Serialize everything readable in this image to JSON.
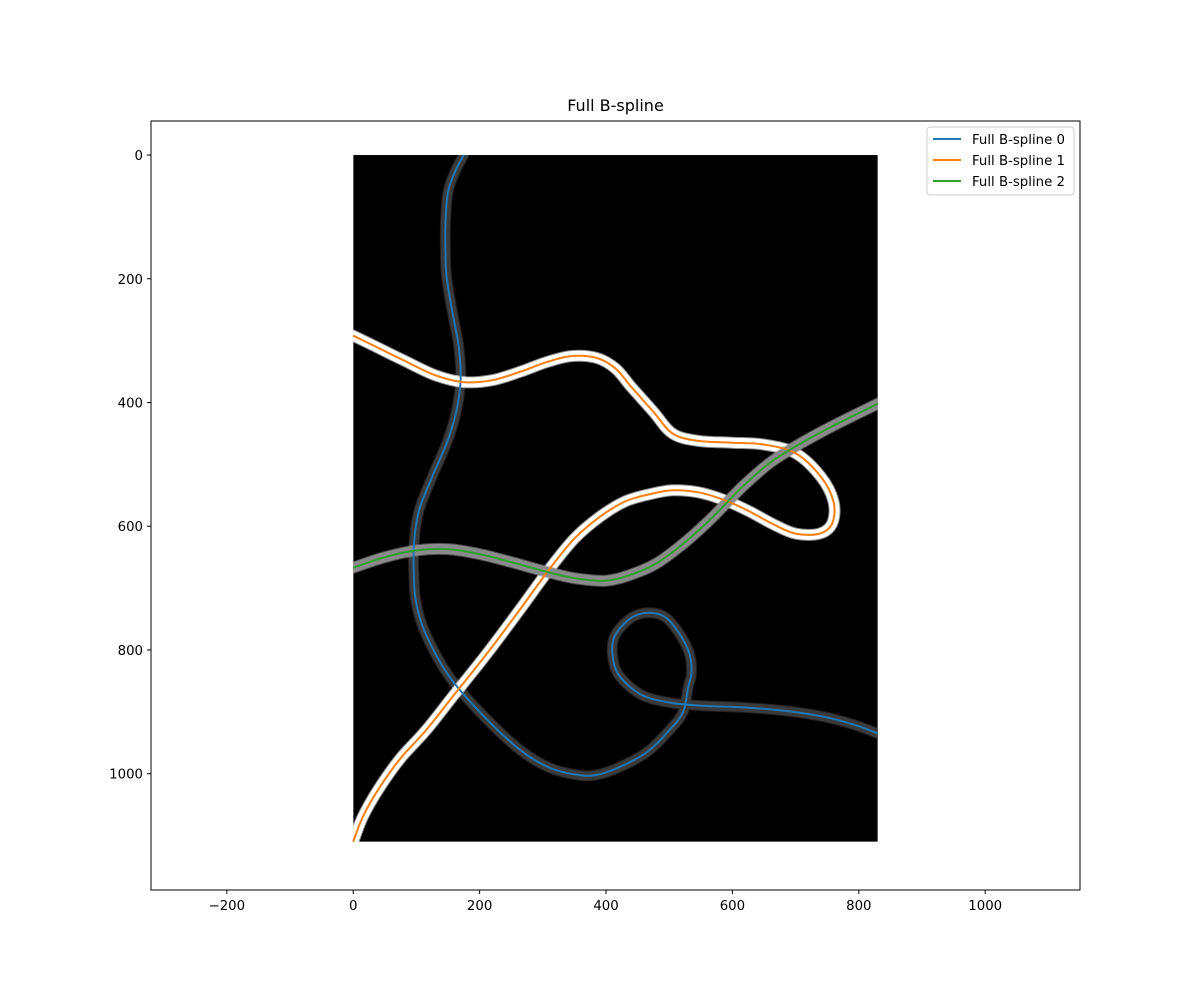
{
  "chart_data": {
    "type": "line",
    "title": "Full B-spline",
    "xlabel": "",
    "ylabel": "",
    "xlim": [
      -320,
      1150
    ],
    "ylim": [
      1188,
      -55
    ],
    "y_inverted": true,
    "xticks": [
      -200,
      0,
      200,
      400,
      600,
      800,
      1000
    ],
    "yticks": [
      0,
      200,
      400,
      600,
      800,
      1000
    ],
    "grid": false,
    "legend_position": "top-right",
    "background_image": {
      "description": "black image region with light tube-like curves under each spline",
      "extent_x": [
        0,
        830
      ],
      "extent_y": [
        0,
        1110
      ]
    },
    "series": [
      {
        "name": "Full B-spline 0",
        "color": "#1f77b4",
        "x": [
          175,
          162,
          150,
          146,
          146,
          148,
          158,
          167,
          170,
          164,
          150,
          125,
          104,
          96,
          96,
          99,
          113,
          150,
          200,
          262,
          310,
          355,
          385,
          420,
          465,
          500,
          522,
          530,
          535,
          533,
          520,
          495,
          468,
          440,
          415,
          410,
          420,
          455,
          500,
          550,
          620,
          680,
          740,
          790,
          830
        ],
        "y": [
          0,
          25,
          60,
          110,
          160,
          200,
          260,
          310,
          360,
          410,
          460,
          520,
          575,
          630,
          680,
          720,
          770,
          840,
          900,
          960,
          990,
          1002,
          1002,
          990,
          965,
          930,
          900,
          860,
          840,
          810,
          780,
          748,
          740,
          748,
          775,
          805,
          840,
          872,
          885,
          890,
          893,
          898,
          907,
          920,
          935
        ]
      },
      {
        "name": "Full B-spline 1",
        "color": "#ff7f0e",
        "x": [
          0,
          40,
          80,
          130,
          175,
          220,
          265,
          305,
          345,
          385,
          415,
          440,
          475,
          505,
          545,
          600,
          650,
          700,
          740,
          760,
          758,
          738,
          700,
          665,
          625,
          585,
          545,
          505,
          470,
          430,
          390,
          350,
          310,
          260,
          210,
          160,
          115,
          75,
          40,
          15,
          0
        ],
        "y": [
          292,
          312,
          332,
          356,
          367,
          364,
          350,
          335,
          325,
          328,
          345,
          375,
          415,
          450,
          462,
          465,
          468,
          482,
          520,
          560,
          595,
          612,
          612,
          597,
          575,
          557,
          545,
          542,
          548,
          560,
          585,
          620,
          670,
          740,
          808,
          872,
          930,
          975,
          1025,
          1070,
          1110
        ]
      },
      {
        "name": "Full B-spline 2",
        "color": "#2ca02c",
        "x": [
          0,
          50,
          100,
          150,
          200,
          250,
          300,
          350,
          400,
          440,
          480,
          520,
          560,
          590,
          620,
          660,
          700,
          740,
          780,
          830
        ],
        "y": [
          667,
          650,
          639,
          637,
          645,
          658,
          672,
          684,
          688,
          678,
          660,
          630,
          594,
          563,
          532,
          497,
          471,
          448,
          427,
          402
        ]
      }
    ]
  }
}
